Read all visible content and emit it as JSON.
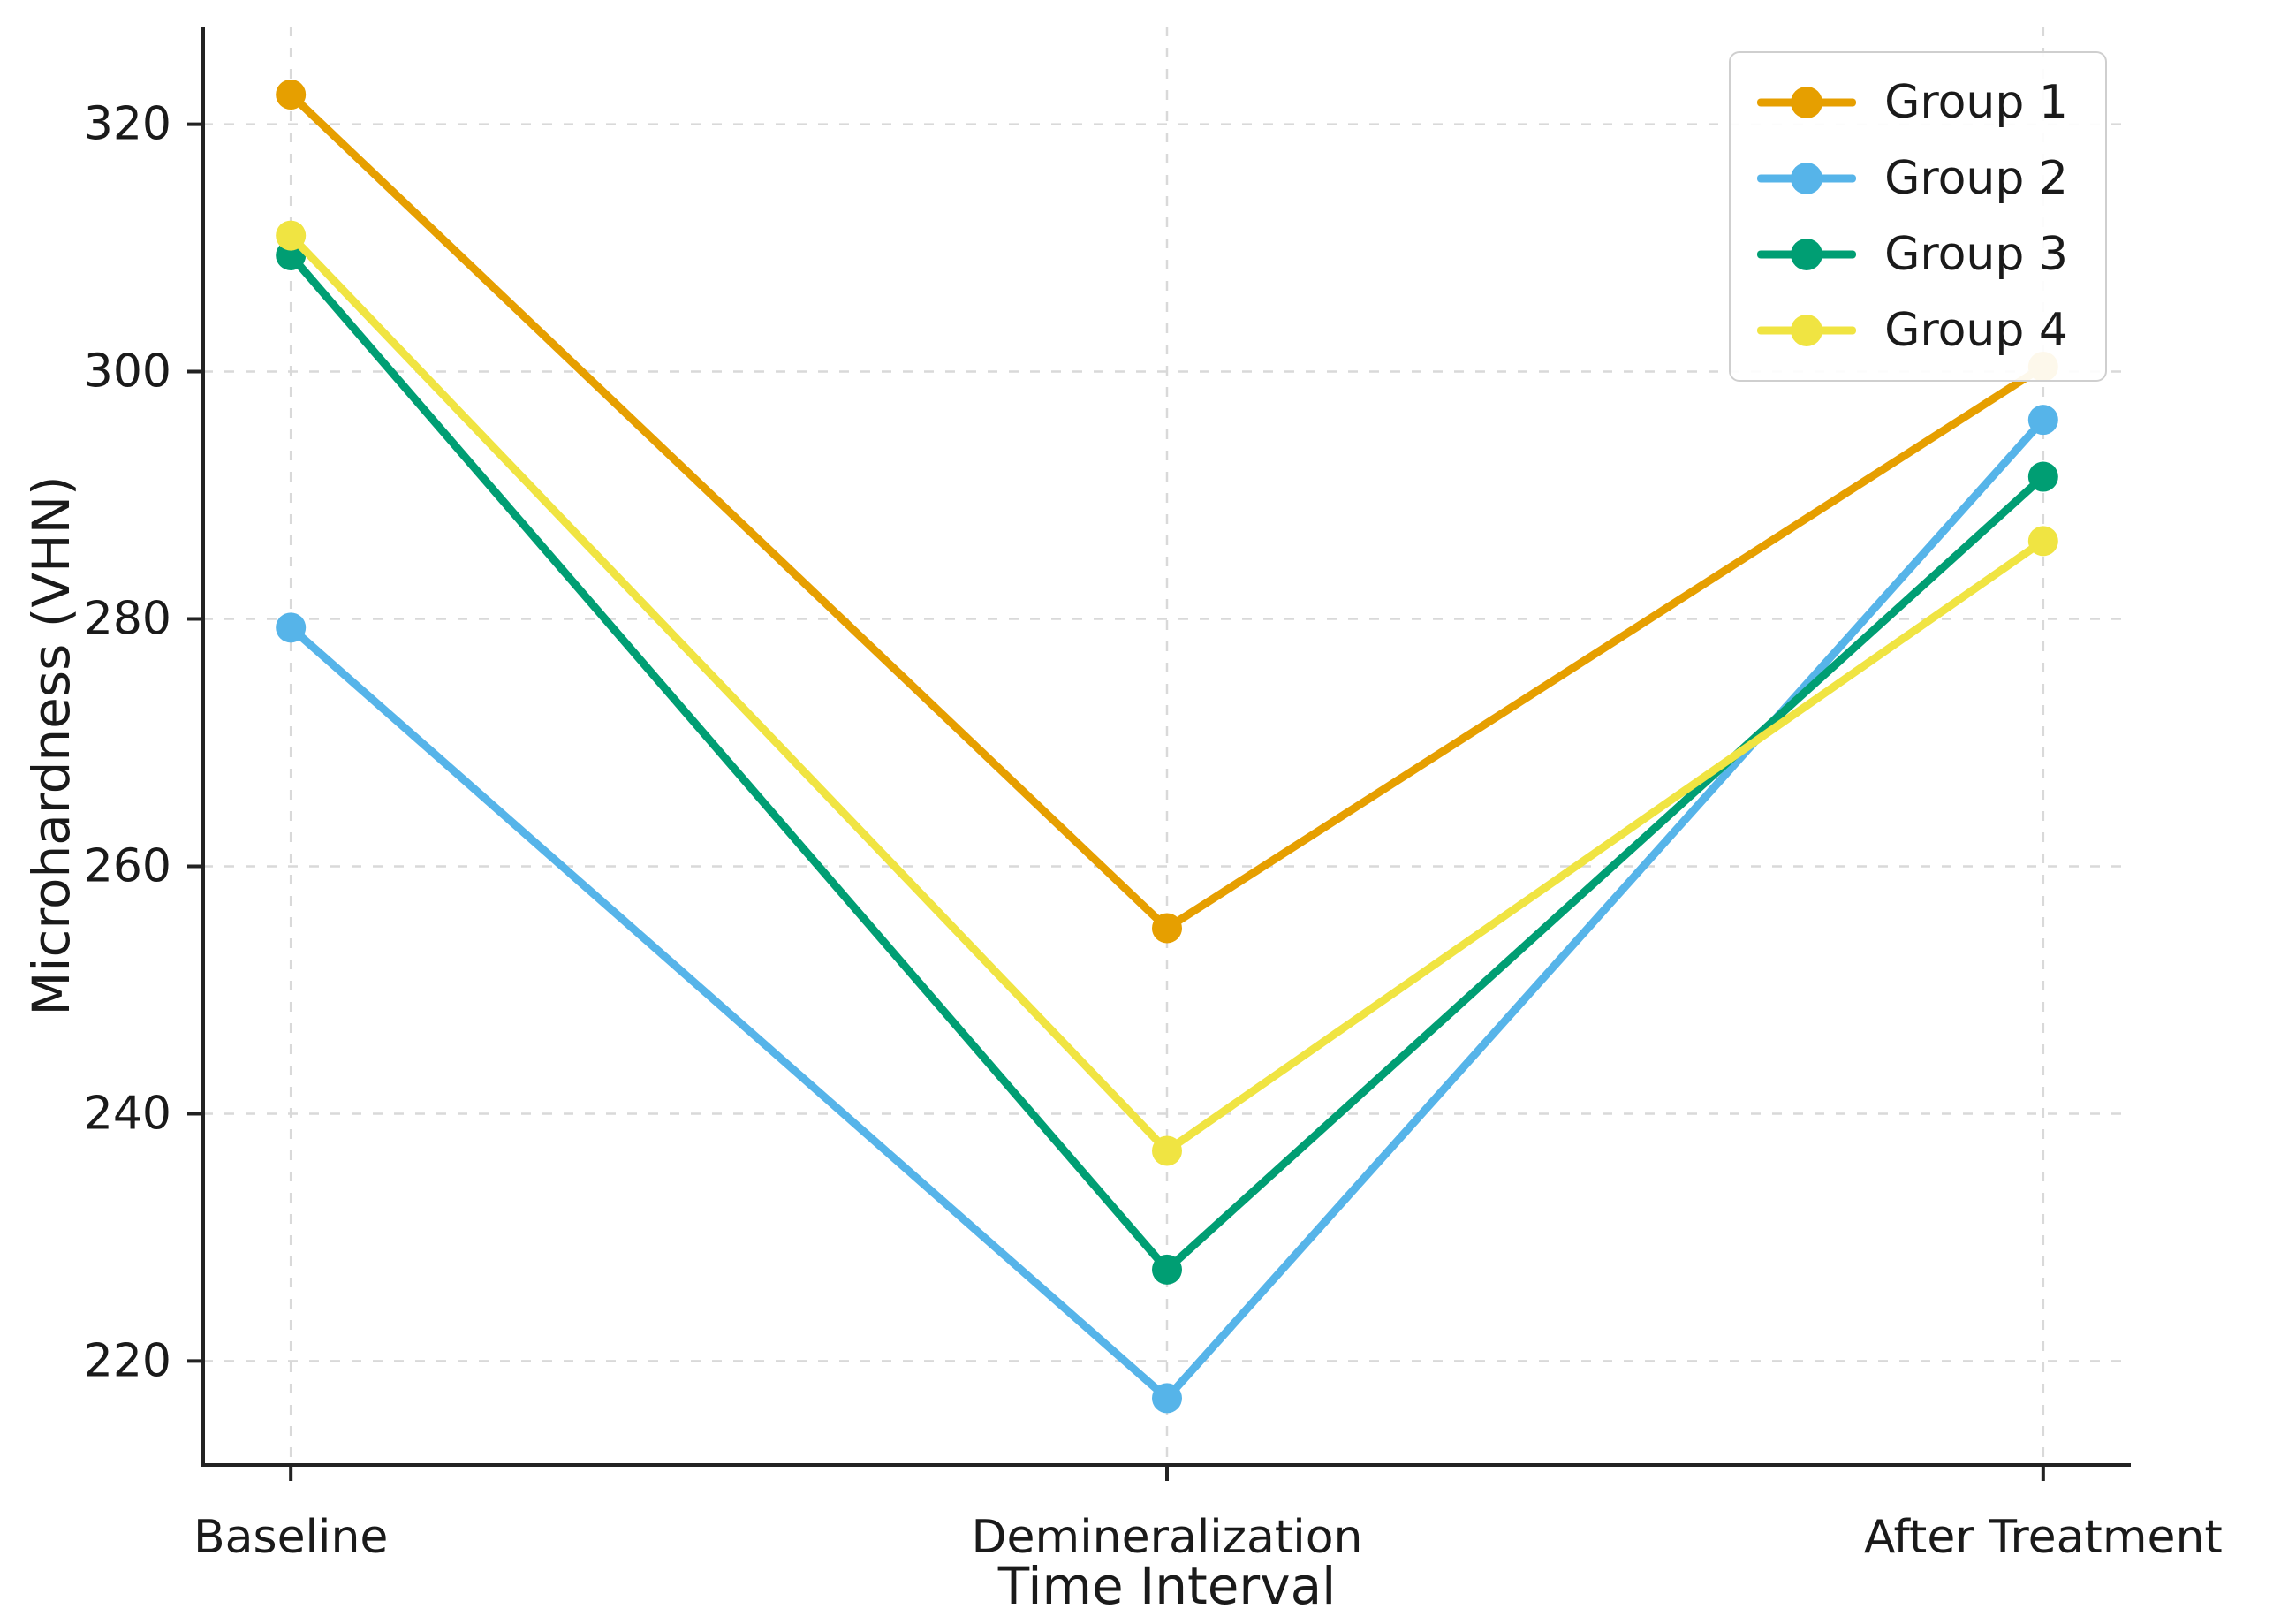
{
  "figure": {
    "background_color": "#ffffff",
    "axis_color": "#222222",
    "grid_color": "#d9d9d9",
    "text_color": "#1a1a1a",
    "legend_border_color": "#cfcfcf"
  },
  "chart_data": {
    "type": "line",
    "title": "",
    "xlabel": "Time Interval",
    "ylabel": "Microhardness (VHN)",
    "categories": [
      "Baseline",
      "Demineralization",
      "After Treatment"
    ],
    "series": [
      {
        "name": "Group 1",
        "color": "#E69F00",
        "values": [
          322.4,
          255.0,
          300.4
        ]
      },
      {
        "name": "Group 2",
        "color": "#56B4E9",
        "values": [
          279.3,
          217.0,
          296.1
        ]
      },
      {
        "name": "Group 3",
        "color": "#009E73",
        "values": [
          309.4,
          227.4,
          291.5
        ]
      },
      {
        "name": "Group 4",
        "color": "#F0E442",
        "values": [
          311.0,
          237.0,
          286.3
        ]
      }
    ],
    "yticks": [
      220,
      240,
      260,
      280,
      300,
      320
    ],
    "ylim": [
      211.6,
      327.9
    ],
    "grid": true,
    "grid_style": "dashed",
    "legend_position": "upper right",
    "marker": "circle"
  }
}
